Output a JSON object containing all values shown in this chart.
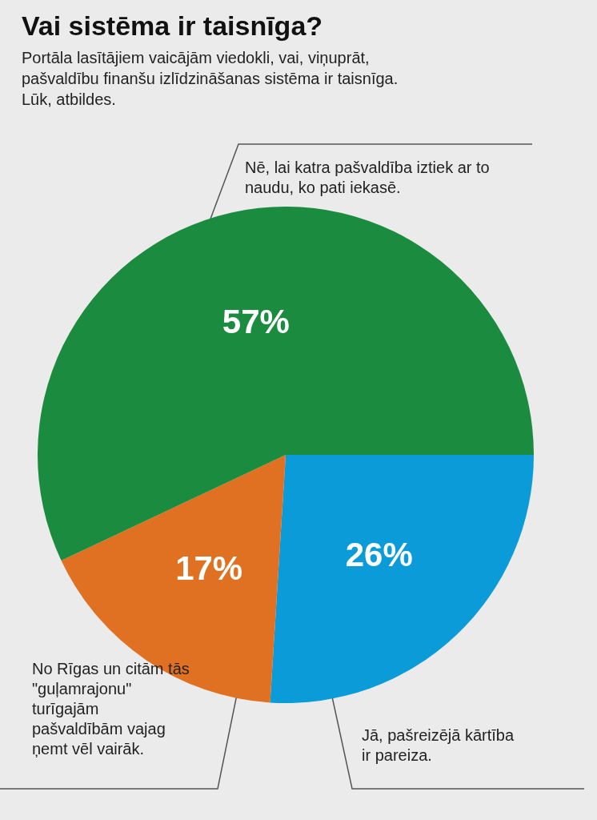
{
  "chart_data": {
    "type": "pie",
    "title": "Vai sistēma ir taisnīga?",
    "subtitle": "Portāla lasītājiem vaicājām viedokli, vai, viņuprāt, pašvaldību finanšu izlīdzināšanas sistēma ir taisnīga. Lūk, atbildes.",
    "categories": [
      "Jā, pašreizējā kārtība ir pareiza.",
      "No Rīgas un citām tās \"guļamrajonu\" turīgajām pašvaldībām vajag ņemt vēl vairāk.",
      "Nē, lai katra pašvaldība iztiek ar to naudu, ko pati iekasē."
    ],
    "values": [
      26,
      17,
      57
    ],
    "colors": [
      "#0a9bd8",
      "#e07122",
      "#1a8b3f"
    ],
    "value_labels": [
      "26%",
      "17%",
      "57%"
    ]
  }
}
